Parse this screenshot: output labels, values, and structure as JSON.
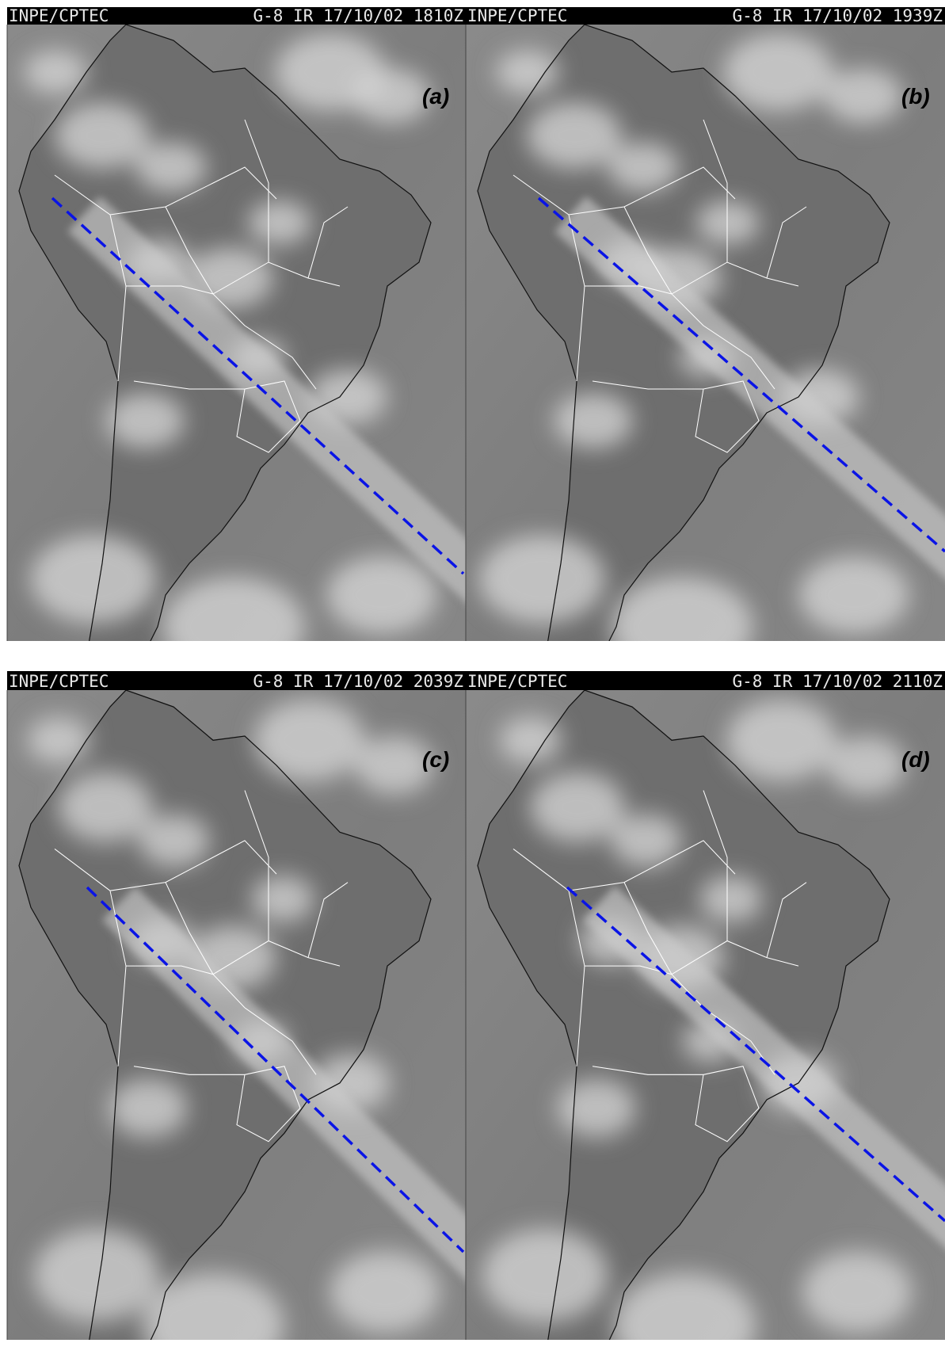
{
  "panels": [
    {
      "source": "INPE/CPTEC",
      "product": "G-8 IR 17/10/02 1810Z",
      "label": "(a)"
    },
    {
      "source": "INPE/CPTEC",
      "product": "G-8 IR 17/10/02 1939Z",
      "label": "(b)"
    },
    {
      "source": "INPE/CPTEC",
      "product": "G-8 IR 17/10/02 2039Z",
      "label": "(c)"
    },
    {
      "source": "INPE/CPTEC",
      "product": "G-8 IR 17/10/02 2110Z",
      "label": "(d)"
    }
  ]
}
